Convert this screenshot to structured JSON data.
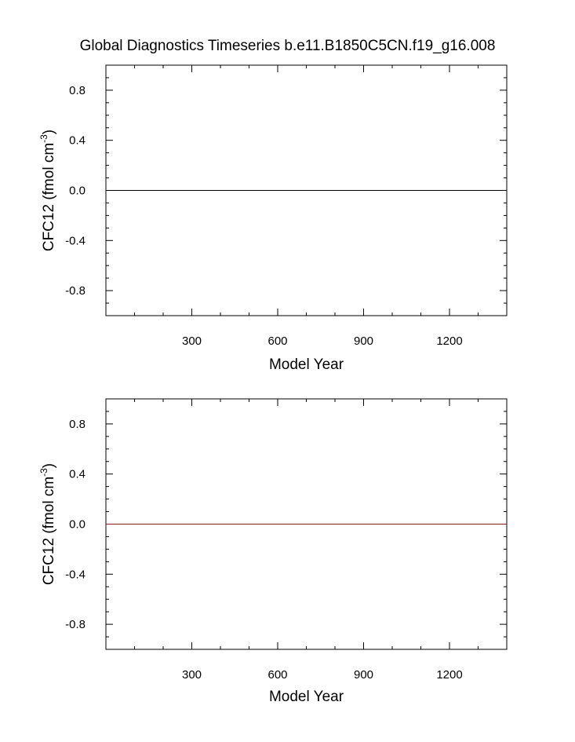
{
  "title": "Global Diagnostics Timeseries b.e11.B1850C5CN.f19_g16.008",
  "chart_data": [
    {
      "type": "line",
      "xlabel": "Model Year",
      "ylabel": {
        "main": "CFC12 (fmol cm",
        "sup": "-3",
        "close": ")"
      },
      "xlim": [
        0,
        1400
      ],
      "ylim": [
        -1.0,
        1.0
      ],
      "xticks": [
        300,
        600,
        900,
        1200
      ],
      "xtick_labels": [
        "300",
        "600",
        "900",
        "1200"
      ],
      "yticks": [
        0.8,
        0.4,
        0.0,
        -0.4,
        -0.8
      ],
      "ytick_labels": [
        "0.8",
        "0.4",
        "0.0",
        "-0.4",
        "-0.8"
      ],
      "grid": false,
      "series": [
        {
          "x": [
            0,
            1400
          ],
          "y": [
            0.0,
            0.0
          ],
          "color": "#000000"
        }
      ]
    },
    {
      "type": "line",
      "xlabel": "Model Year",
      "ylabel": {
        "main": "CFC12 (fmol cm",
        "sup": "-3",
        "close": ")"
      },
      "xlim": [
        0,
        1400
      ],
      "ylim": [
        -1.0,
        1.0
      ],
      "xticks": [
        300,
        600,
        900,
        1200
      ],
      "xtick_labels": [
        "300",
        "600",
        "900",
        "1200"
      ],
      "yticks": [
        0.8,
        0.4,
        0.0,
        -0.4,
        -0.8
      ],
      "ytick_labels": [
        "0.8",
        "0.4",
        "0.0",
        "-0.4",
        "-0.8"
      ],
      "grid": false,
      "series": [
        {
          "x": [
            0,
            1400
          ],
          "y": [
            0.0,
            0.0
          ],
          "color": "#8b1a1a"
        }
      ]
    }
  ]
}
